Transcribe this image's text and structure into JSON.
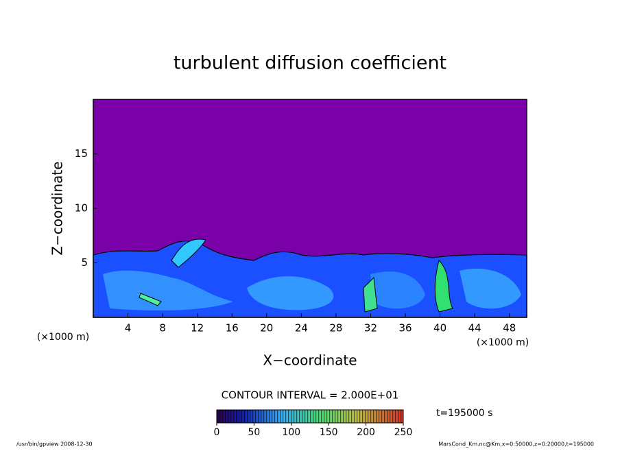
{
  "chart_data": {
    "type": "contour",
    "title": "turbulent diffusion coefficient",
    "x_label": "X−coordinate",
    "y_label": "Z−coordinate",
    "axis_unit": "(×1000 m)",
    "xlim": [
      0,
      50
    ],
    "xticks": [
      4,
      8,
      12,
      16,
      20,
      24,
      28,
      32,
      36,
      40,
      44,
      48
    ],
    "ylim": [
      0,
      20
    ],
    "yticks": [
      5,
      10,
      15
    ],
    "contour_interval": "CONTOUR INTERVAL = 2.000E+01",
    "time_label": "t=195000 s",
    "colorbar_lim": [
      0,
      250
    ],
    "colorbar_ticks": [
      0,
      50,
      100,
      150,
      200,
      250
    ],
    "footer_left": "/usr/bin/gpview   2008-12-30",
    "footer_right": "MarsCond_Km.nc@Km,x=0:50000,z=0:20000,t=195000"
  }
}
